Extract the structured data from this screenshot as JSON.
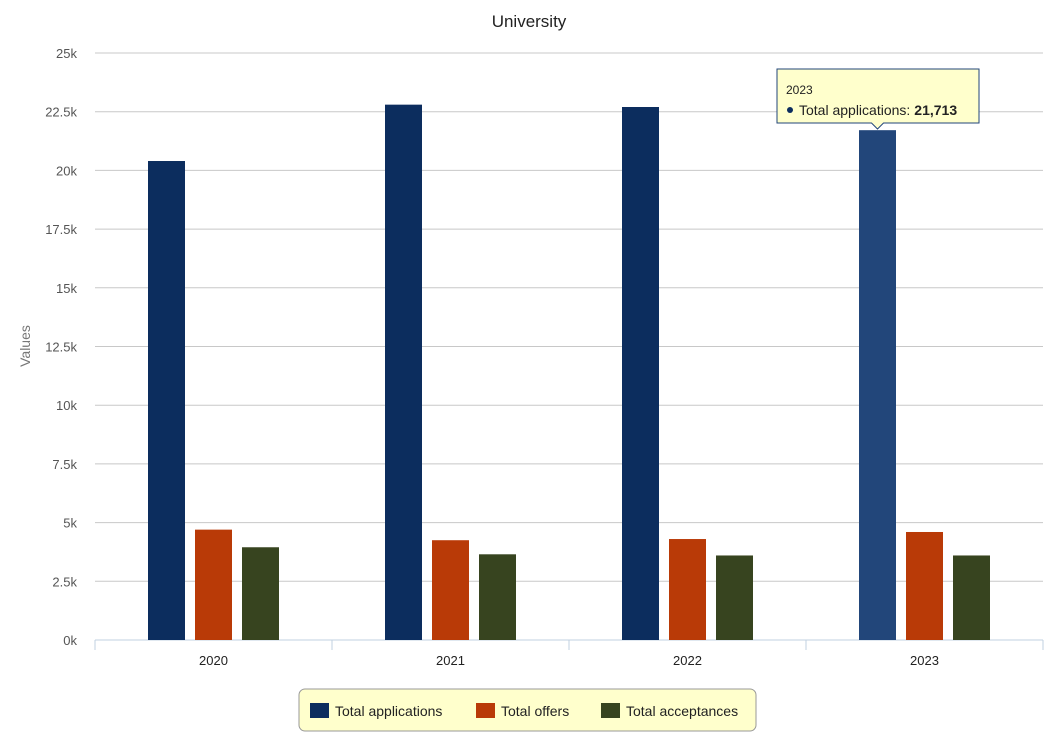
{
  "chart_data": {
    "type": "bar",
    "title": "University",
    "xlabel": "",
    "ylabel": "Values",
    "ylim": [
      0,
      25000
    ],
    "yticks": [
      0,
      2500,
      5000,
      7500,
      10000,
      12500,
      15000,
      17500,
      20000,
      22500,
      25000
    ],
    "ytick_labels": [
      "0k",
      "2.5k",
      "5k",
      "7.5k",
      "10k",
      "12.5k",
      "15k",
      "17.5k",
      "20k",
      "22.5k",
      "25k"
    ],
    "categories": [
      "2020",
      "2021",
      "2022",
      "2023"
    ],
    "series": [
      {
        "name": "Total applications",
        "color": "#0c2d5e",
        "values": [
          20400,
          22800,
          22700,
          21713
        ]
      },
      {
        "name": "Total offers",
        "color": "#b93a07",
        "values": [
          4700,
          4250,
          4300,
          4600
        ]
      },
      {
        "name": "Total acceptances",
        "color": "#37441f",
        "values": [
          3950,
          3650,
          3600,
          3600
        ]
      }
    ],
    "grid": true,
    "legend_position": "bottom-center",
    "highlight": {
      "series": 0,
      "category": 3,
      "color": "#22467a"
    },
    "tooltip": {
      "header": "2023",
      "series_label": "Total applications:",
      "value_text": "21,713"
    }
  },
  "colors": {
    "grid": "#c8c8c8",
    "axis": "#c0d0e0",
    "legend_bg": "#ffffcc",
    "legend_border": "#999999",
    "tooltip_bg": "#ffffcc",
    "tooltip_border": "#22467a"
  }
}
